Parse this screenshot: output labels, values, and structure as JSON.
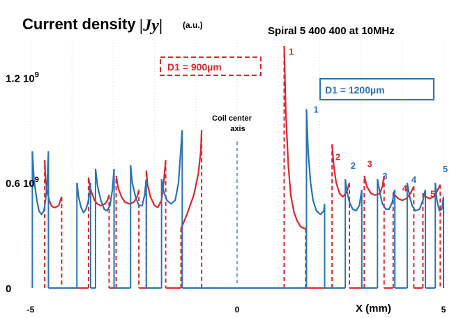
{
  "chart_data": {
    "type": "line",
    "title": "Current density",
    "title_symbol": "|Jy|",
    "title_unit": "(a.u.)",
    "subtitle": "Spiral 5  400  400 at 10MHz",
    "xlabel": "X (mm)",
    "x_ticks": [
      {
        "value": -5,
        "label": "-5"
      },
      {
        "value": 0,
        "label": "0"
      },
      {
        "value": 5,
        "label": "5"
      }
    ],
    "y_ticks": [
      {
        "value": 0,
        "label": "0",
        "sup": ""
      },
      {
        "value": 600000000,
        "label": "0.6 10",
        "sup": "9"
      },
      {
        "value": 1200000000,
        "label": "1.2 10",
        "sup": "9"
      }
    ],
    "xlim": [
      -5,
      5
    ],
    "ylim": [
      0,
      1400000000
    ],
    "grid": "vertical dotted",
    "axis_note": "Coil center\naxis",
    "axis_note_x": 0,
    "series": [
      {
        "name": "D1 = 900µm",
        "color": "#e0242a",
        "style": "solid with dashed edges",
        "y_scale": 1000000000,
        "points": [
          [
            -4.66,
            0
          ],
          [
            -4.66,
            0.73
          ],
          [
            -4.64,
            0.62
          ],
          [
            -4.6,
            0.55
          ],
          [
            -4.55,
            0.5
          ],
          [
            -4.5,
            0.47
          ],
          [
            -4.45,
            0.46
          ],
          [
            -4.4,
            0.46
          ],
          [
            -4.32,
            0.47
          ],
          [
            -4.28,
            0.5
          ],
          [
            -4.25,
            0.52
          ],
          [
            -4.25,
            0
          ],
          [
            -4.25,
            0
          ],
          [
            -3.6,
            0
          ],
          [
            -3.6,
            0.63
          ],
          [
            -3.56,
            0.57
          ],
          [
            -3.5,
            0.53
          ],
          [
            -3.45,
            0.5
          ],
          [
            -3.39,
            0.48
          ],
          [
            -3.3,
            0.47
          ],
          [
            -3.2,
            0.48
          ],
          [
            -3.14,
            0.5
          ],
          [
            -3.1,
            0.53
          ],
          [
            -3.1,
            0
          ],
          [
            -3.1,
            0
          ],
          [
            -2.93,
            0
          ],
          [
            -2.93,
            0.64
          ],
          [
            -2.88,
            0.57
          ],
          [
            -2.8,
            0.52
          ],
          [
            -2.72,
            0.49
          ],
          [
            -2.6,
            0.48
          ],
          [
            -2.5,
            0.49
          ],
          [
            -2.42,
            0.52
          ],
          [
            -2.38,
            0.56
          ],
          [
            -2.38,
            0
          ],
          [
            -2.38,
            0
          ],
          [
            -2.2,
            0
          ],
          [
            -2.2,
            0.67
          ],
          [
            -2.17,
            0.59
          ],
          [
            -2.1,
            0.52
          ],
          [
            -2.0,
            0.47
          ],
          [
            -1.92,
            0.46
          ],
          [
            -1.83,
            0.5
          ],
          [
            -1.78,
            0.6
          ],
          [
            -1.73,
            0.73
          ],
          [
            -1.73,
            0
          ],
          [
            -1.73,
            0
          ],
          [
            -1.36,
            0
          ],
          [
            -1.36,
            0.34
          ],
          [
            -1.3,
            0.37
          ],
          [
            -1.2,
            0.43
          ],
          [
            -1.05,
            0.53
          ],
          [
            -0.94,
            0.65
          ],
          [
            -0.88,
            0.78
          ],
          [
            -0.86,
            0.9
          ],
          [
            -0.86,
            0
          ],
          [
            1.14,
            0
          ],
          [
            1.14,
            1.38
          ],
          [
            1.18,
            1.0
          ],
          [
            1.24,
            0.7
          ],
          [
            1.3,
            0.53
          ],
          [
            1.38,
            0.43
          ],
          [
            1.46,
            0.38
          ],
          [
            1.54,
            0.35
          ],
          [
            1.62,
            0.34
          ],
          [
            1.66,
            0.34
          ],
          [
            1.66,
            0
          ],
          [
            1.66,
            0
          ],
          [
            2.3,
            0
          ],
          [
            2.3,
            0.82
          ],
          [
            2.34,
            0.7
          ],
          [
            2.4,
            0.6
          ],
          [
            2.48,
            0.54
          ],
          [
            2.56,
            0.52
          ],
          [
            2.66,
            0.55
          ],
          [
            2.72,
            0.6
          ],
          [
            2.72,
            0
          ],
          [
            2.72,
            0
          ],
          [
            3.08,
            0
          ],
          [
            3.08,
            0.64
          ],
          [
            3.14,
            0.58
          ],
          [
            3.24,
            0.54
          ],
          [
            3.34,
            0.53
          ],
          [
            3.46,
            0.54
          ],
          [
            3.52,
            0.58
          ],
          [
            3.56,
            0.64
          ],
          [
            3.56,
            0
          ],
          [
            3.56,
            0
          ],
          [
            3.78,
            0
          ],
          [
            3.78,
            0.55
          ],
          [
            3.82,
            0.53
          ],
          [
            3.9,
            0.51
          ],
          [
            4.0,
            0.5
          ],
          [
            4.1,
            0.51
          ],
          [
            4.2,
            0.54
          ],
          [
            4.28,
            0.58
          ],
          [
            4.28,
            0
          ],
          [
            4.28,
            0
          ],
          [
            4.5,
            0
          ],
          [
            4.5,
            0.54
          ],
          [
            4.58,
            0.52
          ],
          [
            4.66,
            0.51
          ],
          [
            4.76,
            0.52
          ],
          [
            4.84,
            0.55
          ],
          [
            4.92,
            0.59
          ],
          [
            4.92,
            0
          ]
        ]
      },
      {
        "name": "D1 = 1200µm",
        "color": "#2a72b5",
        "style": "solid",
        "y_scale": 1000000000,
        "points": [
          [
            -4.96,
            0
          ],
          [
            -4.96,
            0.78
          ],
          [
            -4.92,
            0.62
          ],
          [
            -4.85,
            0.5
          ],
          [
            -4.8,
            0.44
          ],
          [
            -4.74,
            0.42
          ],
          [
            -4.68,
            0.44
          ],
          [
            -4.64,
            0.5
          ],
          [
            -4.6,
            0.6
          ],
          [
            -4.57,
            0.78
          ],
          [
            -4.57,
            0
          ],
          [
            -4.57,
            0
          ],
          [
            -3.88,
            0
          ],
          [
            -3.88,
            0.6
          ],
          [
            -3.84,
            0.52
          ],
          [
            -3.78,
            0.46
          ],
          [
            -3.72,
            0.43
          ],
          [
            -3.66,
            0.45
          ],
          [
            -3.6,
            0.5
          ],
          [
            -3.55,
            0.6
          ],
          [
            -3.55,
            0
          ],
          [
            -3.55,
            0
          ],
          [
            -3.43,
            0
          ],
          [
            -3.43,
            0.68
          ],
          [
            -3.38,
            0.58
          ],
          [
            -3.3,
            0.5
          ],
          [
            -3.22,
            0.45
          ],
          [
            -3.15,
            0.44
          ],
          [
            -3.08,
            0.47
          ],
          [
            -3.02,
            0.56
          ],
          [
            -2.98,
            0.68
          ],
          [
            -2.98,
            0
          ],
          [
            -2.98,
            0
          ],
          [
            -2.58,
            0
          ],
          [
            -2.58,
            0.7
          ],
          [
            -2.54,
            0.6
          ],
          [
            -2.46,
            0.52
          ],
          [
            -2.38,
            0.47
          ],
          [
            -2.3,
            0.47
          ],
          [
            -2.24,
            0.53
          ],
          [
            -2.2,
            0.62
          ],
          [
            -2.2,
            0
          ],
          [
            -2.2,
            0
          ],
          [
            -1.83,
            0
          ],
          [
            -1.83,
            0.62
          ],
          [
            -1.78,
            0.55
          ],
          [
            -1.7,
            0.5
          ],
          [
            -1.6,
            0.48
          ],
          [
            -1.5,
            0.5
          ],
          [
            -1.42,
            0.6
          ],
          [
            -1.36,
            0.8
          ],
          [
            -1.33,
            0.9
          ],
          [
            -1.33,
            0
          ],
          [
            -1.33,
            0
          ],
          [
            1.68,
            0
          ],
          [
            1.68,
            1.02
          ],
          [
            1.72,
            0.78
          ],
          [
            1.78,
            0.6
          ],
          [
            1.84,
            0.5
          ],
          [
            1.92,
            0.44
          ],
          [
            2.02,
            0.42
          ],
          [
            2.1,
            0.44
          ],
          [
            2.12,
            0.48
          ],
          [
            2.12,
            0
          ],
          [
            2.12,
            0
          ],
          [
            2.62,
            0
          ],
          [
            2.62,
            0.62
          ],
          [
            2.66,
            0.55
          ],
          [
            2.72,
            0.49
          ],
          [
            2.8,
            0.45
          ],
          [
            2.88,
            0.44
          ],
          [
            2.96,
            0.47
          ],
          [
            3.02,
            0.56
          ],
          [
            3.02,
            0
          ],
          [
            3.02,
            0
          ],
          [
            3.4,
            0
          ],
          [
            3.4,
            0.62
          ],
          [
            3.46,
            0.54
          ],
          [
            3.52,
            0.48
          ],
          [
            3.6,
            0.45
          ],
          [
            3.68,
            0.45
          ],
          [
            3.76,
            0.49
          ],
          [
            3.82,
            0.56
          ],
          [
            3.82,
            0
          ],
          [
            3.82,
            0
          ],
          [
            4.12,
            0
          ],
          [
            4.12,
            0.6
          ],
          [
            4.18,
            0.52
          ],
          [
            4.24,
            0.47
          ],
          [
            4.32,
            0.44
          ],
          [
            4.42,
            0.45
          ],
          [
            4.5,
            0.5
          ],
          [
            4.56,
            0.56
          ],
          [
            4.56,
            0
          ],
          [
            4.56,
            0
          ],
          [
            4.8,
            0
          ],
          [
            4.8,
            0.6
          ],
          [
            4.84,
            0.5
          ],
          [
            4.9,
            0.44
          ],
          [
            4.96,
            0.45
          ],
          [
            5.0,
            0.52
          ],
          [
            5.0,
            0
          ]
        ]
      }
    ],
    "legend": [
      {
        "text": "D1 = 900µm",
        "series": 0,
        "box": "dashed"
      },
      {
        "text": "D1 = 1200µm",
        "series": 1,
        "box": "solid"
      }
    ],
    "turn_labels": [
      {
        "text": "1",
        "series": 0,
        "x": 1.25,
        "y": 1.33
      },
      {
        "text": "1",
        "series": 1,
        "x": 1.85,
        "y": 1.0
      },
      {
        "text": "2",
        "series": 0,
        "x": 2.38,
        "y": 0.73
      },
      {
        "text": "2",
        "series": 1,
        "x": 2.75,
        "y": 0.68
      },
      {
        "text": "3",
        "series": 0,
        "x": 3.15,
        "y": 0.69
      },
      {
        "text": "3",
        "series": 1,
        "x": 3.52,
        "y": 0.62
      },
      {
        "text": "4",
        "series": 0,
        "x": 4.0,
        "y": 0.55
      },
      {
        "text": "4",
        "series": 1,
        "x": 4.22,
        "y": 0.6
      },
      {
        "text": "5",
        "series": 0,
        "x": 4.68,
        "y": 0.52
      },
      {
        "text": "5",
        "series": 1,
        "x": 4.98,
        "y": 0.66
      }
    ]
  }
}
